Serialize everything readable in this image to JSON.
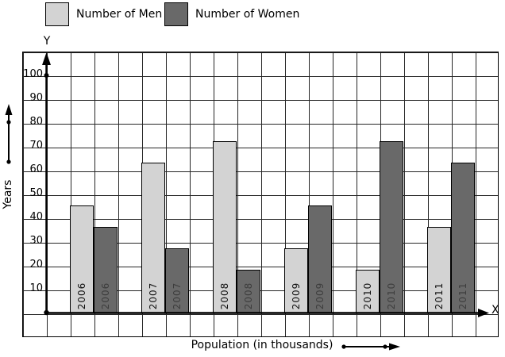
{
  "legend": {
    "men_label": "Number of Men",
    "women_label": "Number of Women"
  },
  "axes": {
    "y_letter": "Y",
    "x_letter": "X",
    "y_title": "Years",
    "x_title": "Population (in thousands)"
  },
  "chart_data": {
    "type": "bar",
    "title": "",
    "xlabel": "Population (in thousands)",
    "ylabel": "Years",
    "categories": [
      "2006",
      "2007",
      "2008",
      "2009",
      "2010",
      "2011"
    ],
    "series": [
      {
        "name": "Number of Men",
        "color": "#d3d3d3",
        "values": [
          45,
          63,
          72,
          27,
          18,
          36
        ]
      },
      {
        "name": "Number of Women",
        "color": "#696969",
        "values": [
          36,
          27,
          18,
          45,
          72,
          63
        ]
      }
    ],
    "yticks": [
      10,
      20,
      30,
      40,
      50,
      60,
      70,
      80,
      90,
      100
    ],
    "ylim": [
      0,
      110
    ],
    "grid": true,
    "legend_position": "top-left"
  },
  "colors": {
    "men_bar": "#d3d3d3",
    "women_bar": "#696969",
    "grid_line": "#262626",
    "axis": "#000000",
    "background": "#ffffff"
  }
}
